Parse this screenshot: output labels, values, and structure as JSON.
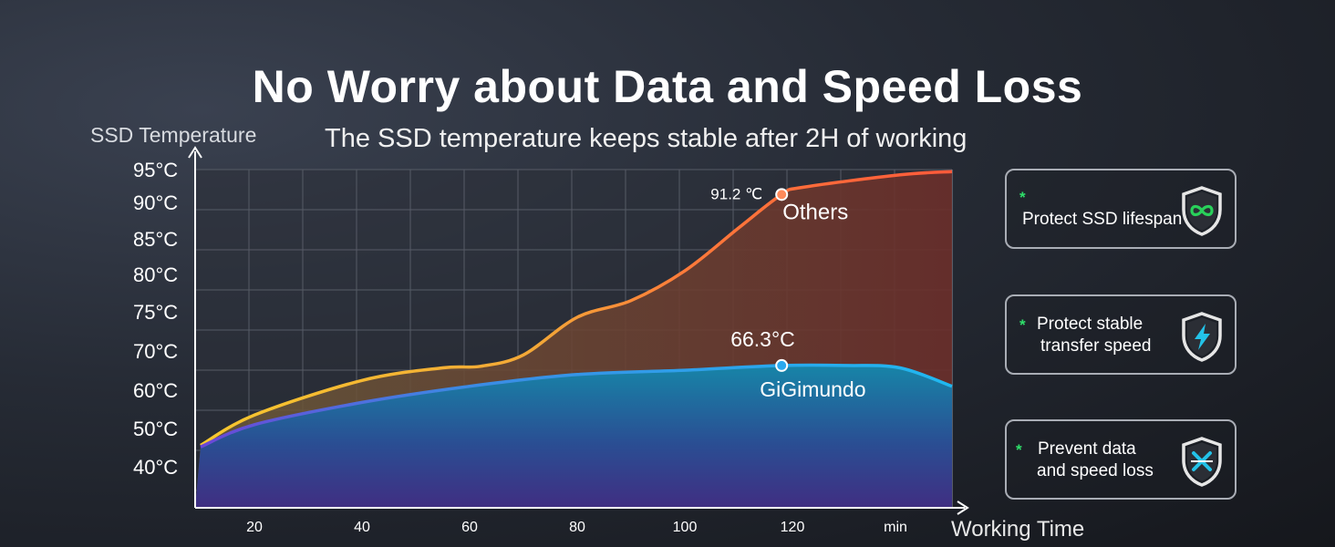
{
  "title": "No Worry about Data and Speed Loss",
  "subtitle": "The SSD temperature keeps stable after 2H of working",
  "chart_data": {
    "type": "area",
    "ylabel": "SSD Temperature",
    "xlabel": "Working Time",
    "x_ticks": [
      "20",
      "40",
      "60",
      "80",
      "100",
      "120",
      "min"
    ],
    "y_ticks": [
      "40°C",
      "50°C",
      "60°C",
      "70°C",
      "75°C",
      "80°C",
      "85°C",
      "90°C",
      "95°C"
    ],
    "grid": true,
    "series": [
      {
        "name": "Others",
        "color": "#ff6a3d",
        "x": [
          10,
          20,
          40,
          55,
          62,
          70,
          80,
          90,
          100,
          110,
          118,
          122,
          140,
          150
        ],
        "y": [
          45.6,
          53.5,
          62.5,
          65.7,
          66.1,
          69,
          74.3,
          76.5,
          80.5,
          86.5,
          91.2,
          92.3,
          94.2,
          94.7
        ]
      },
      {
        "name": "GiGimundo",
        "color": "#26a6e8",
        "x": [
          10,
          20,
          40,
          60,
          80,
          100,
          118,
          130,
          140,
          150
        ],
        "y": [
          45.2,
          51,
          56.8,
          61,
          64,
          65.1,
          66.3,
          66.3,
          65.7,
          61
        ]
      }
    ],
    "annotations": [
      {
        "series": "Others",
        "label": "91.2 ℃",
        "x": 118,
        "y": 91.2
      },
      {
        "series": "GiGimundo",
        "label": "66.3°C",
        "x": 118,
        "y": 66.3
      }
    ]
  },
  "features": [
    {
      "star": "*",
      "lines": [
        "Protect SSD lifespan"
      ],
      "icon": "infinity-shield-icon"
    },
    {
      "star": "*",
      "lines": [
        "Protect stable",
        "transfer speed"
      ],
      "icon": "lightning-shield-icon"
    },
    {
      "star": "*",
      "lines": [
        "Prevent data",
        "and speed loss"
      ],
      "icon": "cross-shield-icon"
    }
  ]
}
